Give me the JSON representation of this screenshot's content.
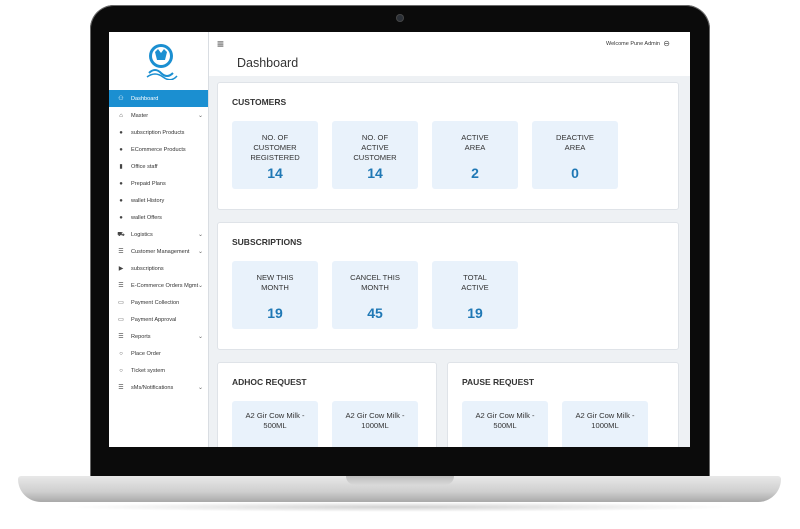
{
  "topbar": {
    "welcome": "Welcome Pune Admin",
    "page_title": "Dashboard"
  },
  "sidebar": {
    "items": [
      {
        "label": "Dashboard",
        "icon": "dashboard-icon",
        "glyph": "⚇"
      },
      {
        "label": "Master",
        "icon": "building-icon",
        "glyph": "⌂",
        "chevron": "⌄"
      },
      {
        "label": "subscription Products",
        "icon": "circle-icon",
        "glyph": "●"
      },
      {
        "label": "ECommerce Products",
        "icon": "circle-icon",
        "glyph": "●"
      },
      {
        "label": "Office staff",
        "icon": "office-icon",
        "glyph": "▮"
      },
      {
        "label": "Prepaid Plans",
        "icon": "circle-icon",
        "glyph": "●"
      },
      {
        "label": "wallet History",
        "icon": "circle-icon",
        "glyph": "●"
      },
      {
        "label": "wallet Offers",
        "icon": "circle-icon",
        "glyph": "●"
      },
      {
        "label": "Logistics",
        "icon": "truck-icon",
        "glyph": "⛟",
        "chevron": "⌄"
      },
      {
        "label": "Customer Management",
        "icon": "list-icon",
        "glyph": "☰",
        "chevron": "⌄"
      },
      {
        "label": "subscriptions",
        "icon": "play-icon",
        "glyph": "▶"
      },
      {
        "label": "E-Commerce Orders Mgmt",
        "icon": "list-icon",
        "glyph": "☰",
        "chevron": "⌄"
      },
      {
        "label": "Payment Collection",
        "icon": "payment-icon",
        "glyph": "▭"
      },
      {
        "label": "Payment Approval",
        "icon": "payment-icon",
        "glyph": "▭"
      },
      {
        "label": "Reports",
        "icon": "list-icon",
        "glyph": "☰",
        "chevron": "⌄"
      },
      {
        "label": "Place Order",
        "icon": "circle-icon",
        "glyph": "○"
      },
      {
        "label": "Ticket system",
        "icon": "circle-icon",
        "glyph": "○"
      },
      {
        "label": "sMs/Notifications",
        "icon": "list-icon",
        "glyph": "☰",
        "chevron": "⌄"
      }
    ]
  },
  "customers": {
    "title": "CUSTOMERS",
    "stats": [
      {
        "label": "NO. OF\nCUSTOMER\nREGISTERED",
        "value": "14"
      },
      {
        "label": "NO. OF\nACTIVE\nCUSTOMER",
        "value": "14"
      },
      {
        "label": "ACTIVE\nAREA",
        "value": "2"
      },
      {
        "label": "DEACTIVE\nAREA",
        "value": "0"
      }
    ]
  },
  "subscriptions": {
    "title": "SUBSCRIPTIONS",
    "stats": [
      {
        "label": "NEW THIS\nMONTH",
        "value": "19"
      },
      {
        "label": "CANCEL THIS\nMONTH",
        "value": "45"
      },
      {
        "label": "TOTAL\nACTIVE",
        "value": "19"
      }
    ]
  },
  "adhoc": {
    "title": "ADHOC REQUEST",
    "items": [
      "A2 Gir Cow Milk -\n500ML",
      "A2 Gir Cow Milk -\n1000ML"
    ]
  },
  "pause": {
    "title": "PAUSE REQUEST",
    "items": [
      "A2 Gir Cow Milk -\n500ML",
      "A2 Gir Cow Milk -\n1000ML"
    ]
  },
  "colors": {
    "accent": "#1b8fd1",
    "stat_value": "#1f78b5",
    "stat_bg": "#e9f2fb"
  }
}
